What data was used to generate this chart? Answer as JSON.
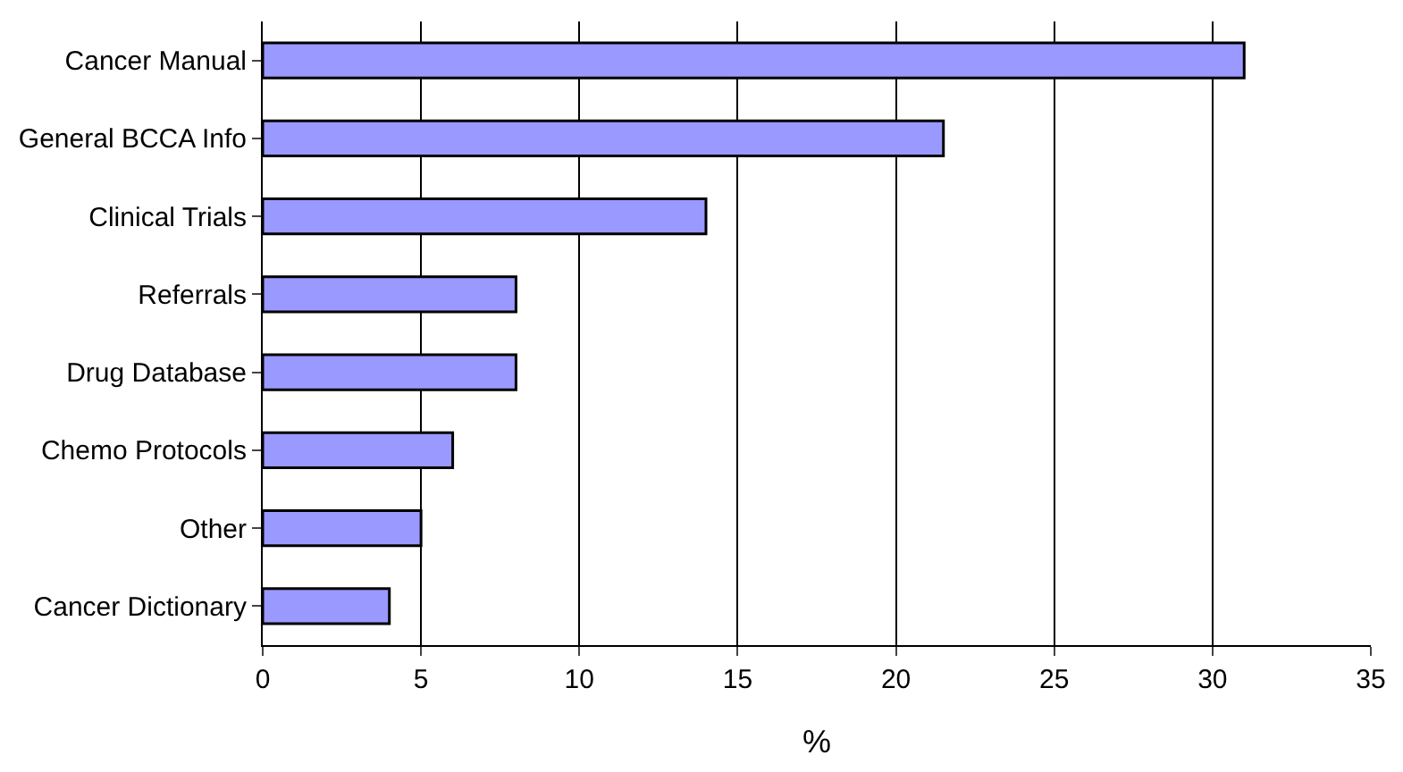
{
  "chart_data": {
    "type": "bar",
    "orientation": "horizontal",
    "xlabel": "%",
    "categories": [
      "Cancer Manual",
      "General BCCA Info",
      "Clinical Trials",
      "Referrals",
      "Drug Database",
      "Chemo Protocols",
      "Other",
      "Cancer Dictionary"
    ],
    "values": [
      31,
      21.5,
      14,
      8,
      8,
      6,
      5,
      4
    ],
    "color": "#9999ff",
    "xlim": [
      0,
      35
    ],
    "xticks": [
      0,
      5,
      10,
      15,
      20,
      25,
      30,
      35
    ],
    "grid": "x"
  }
}
